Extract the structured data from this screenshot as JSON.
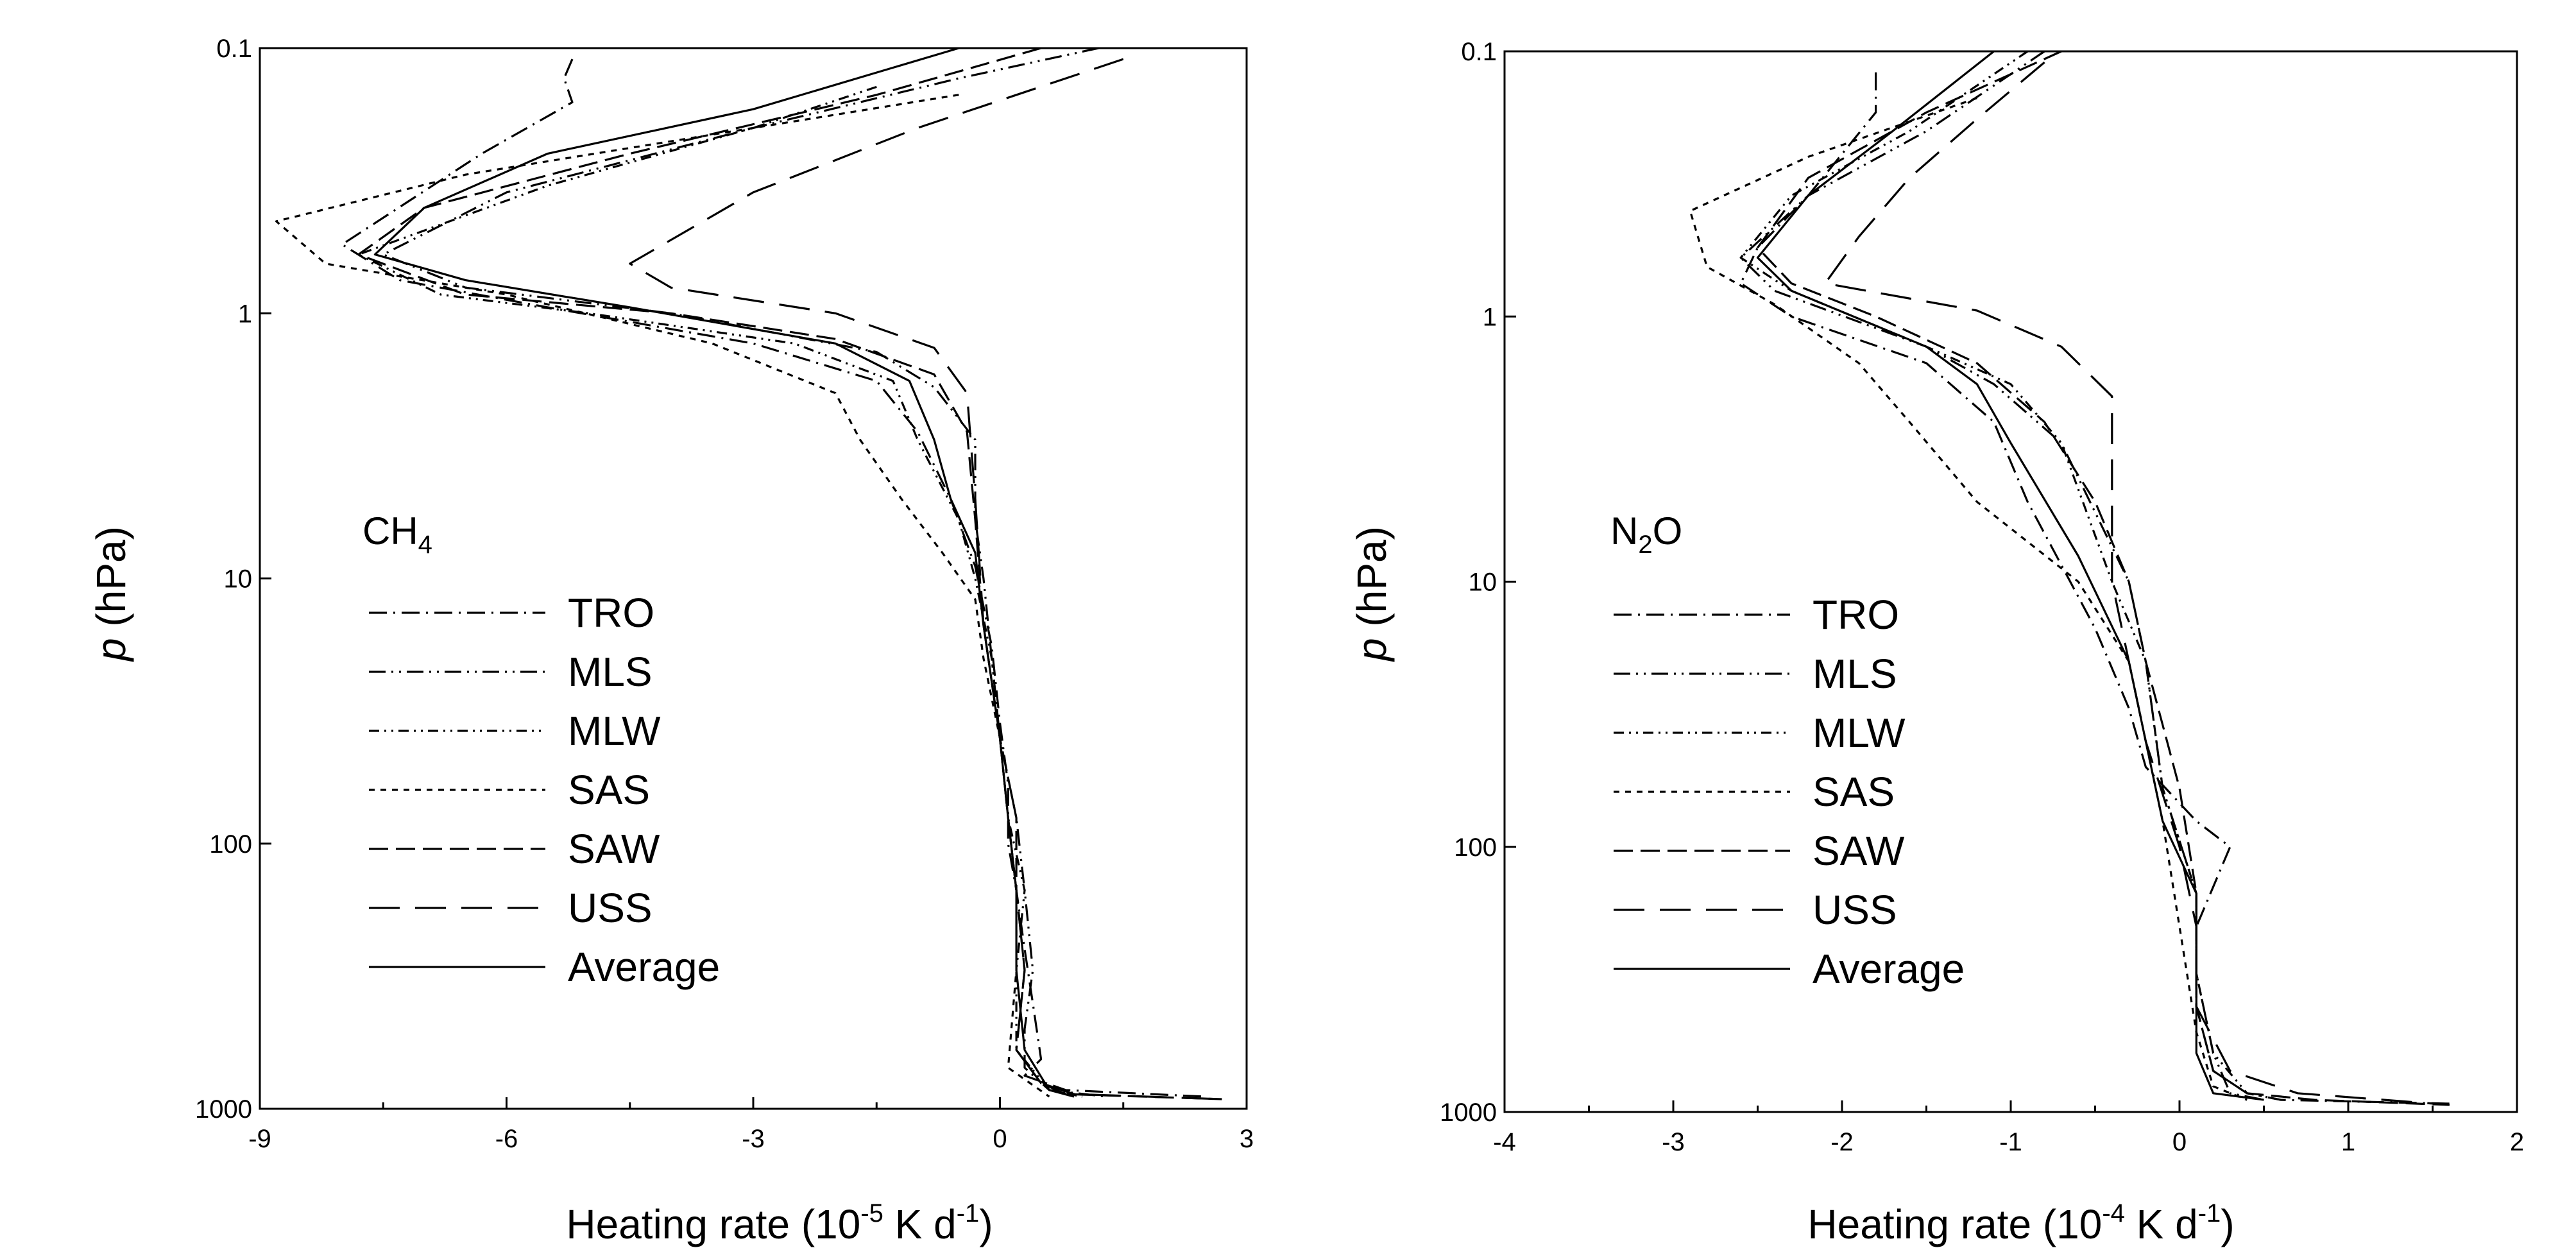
{
  "chart_data": [
    {
      "type": "line",
      "label_base": "CH",
      "label_sub": "4",
      "label_tail": "",
      "xlabel_pre": "Heating rate (10",
      "xlabel_exp": "-5",
      "xlabel_mid": " K d",
      "xlabel_exp2": "-1",
      "xlabel_post": ")",
      "ylabel_italic": "p",
      "ylabel_rest": " (hPa)",
      "xlim": [
        -9,
        3
      ],
      "xticks": [
        -9,
        -6,
        -3,
        0,
        3
      ],
      "xtick_labels": [
        "-9",
        "-6",
        "-3",
        "0",
        "3"
      ],
      "ylim": [
        0.1,
        1000
      ],
      "yscale": "log",
      "yreversed": true,
      "yticks": [
        0.1,
        1,
        10,
        100,
        1000
      ],
      "ytick_labels": [
        "0.1",
        "1",
        "10",
        "100",
        "1000"
      ],
      "legend_placement": "left-middle",
      "series": [
        {
          "name": "TRO",
          "dash": "dashdot",
          "x": [
            -5.2,
            -5.3,
            -5.2,
            -6.3,
            -8.0,
            -7.3,
            -5.5,
            -3.0,
            -1.5,
            -1.0,
            -0.6,
            -0.3,
            -0.1,
            0.0,
            0.1,
            0.1,
            0.2,
            0.3,
            0.4,
            0.5,
            0.3,
            0.8,
            2.5
          ],
          "y": [
            0.11,
            0.13,
            0.16,
            0.25,
            0.55,
            0.75,
            0.95,
            1.3,
            1.8,
            2.8,
            5.0,
            9.0,
            18.0,
            35.0,
            60.0,
            100.0,
            150.0,
            250.0,
            400.0,
            650.0,
            750.0,
            850.0,
            900.0
          ]
        },
        {
          "name": "MLS",
          "dash": "dashdotdot",
          "x": [
            1.2,
            -0.5,
            -3.0,
            -6.0,
            -7.5,
            -6.5,
            -4.0,
            -1.5,
            -0.8,
            -0.3,
            -0.3,
            -0.2,
            -0.1,
            0.0,
            0.2,
            0.3,
            0.4,
            0.3,
            0.3,
            0.6,
            1.3
          ],
          "y": [
            0.1,
            0.13,
            0.2,
            0.35,
            0.6,
            0.8,
            1.0,
            1.4,
            1.9,
            3.0,
            6.0,
            10.0,
            20.0,
            40.0,
            80.0,
            150.0,
            300.0,
            500.0,
            700.0,
            850.0,
            900.0
          ]
        },
        {
          "name": "MLW",
          "dash": "dashdotdot2",
          "x": [
            -1.5,
            -3.0,
            -5.5,
            -7.8,
            -6.8,
            -5.0,
            -2.5,
            -1.3,
            -1.0,
            -0.5,
            -0.3,
            -0.1,
            0.0,
            0.1,
            0.3,
            0.2,
            0.2,
            0.6,
            1.0
          ],
          "y": [
            0.14,
            0.2,
            0.33,
            0.6,
            0.85,
            1.0,
            1.3,
            1.8,
            3.0,
            6.0,
            10.0,
            20.0,
            40.0,
            80.0,
            150.0,
            300.0,
            600.0,
            850.0,
            900.0
          ]
        },
        {
          "name": "SAS",
          "dash": "shortdash",
          "x": [
            -0.5,
            -3.0,
            -6.5,
            -8.8,
            -8.2,
            -6.0,
            -3.5,
            -2.0,
            -1.7,
            -1.2,
            -0.7,
            -0.3,
            -0.2,
            0.0,
            0.1,
            0.2,
            0.2,
            0.1,
            0.6
          ],
          "y": [
            0.15,
            0.2,
            0.3,
            0.45,
            0.65,
            0.85,
            1.3,
            2.0,
            3.0,
            5.0,
            8.0,
            12.0,
            20.0,
            40.0,
            80.0,
            150.0,
            300.0,
            700.0,
            900.0
          ]
        },
        {
          "name": "SAW",
          "dash": "longdash",
          "x": [
            0.5,
            -1.5,
            -4.5,
            -7.0,
            -7.8,
            -6.5,
            -4.0,
            -2.0,
            -0.8,
            -0.4,
            -0.3,
            -0.2,
            0.0,
            0.2,
            0.2,
            0.3,
            0.2,
            0.5,
            0.8,
            2.7
          ],
          "y": [
            0.1,
            0.15,
            0.25,
            0.4,
            0.6,
            0.85,
            1.0,
            1.25,
            1.7,
            2.8,
            6.0,
            15.0,
            40.0,
            80.0,
            150.0,
            300.0,
            600.0,
            800.0,
            880.0,
            920.0
          ]
        },
        {
          "name": "USS",
          "dash": "verylongdash",
          "x": [
            1.5,
            -1.0,
            -3.0,
            -4.5,
            -4.0,
            -2.0,
            -0.8,
            -0.4,
            -0.3,
            -0.2,
            0.0,
            0.1,
            0.2,
            0.3,
            0.2,
            0.5,
            0.9,
            2.7
          ],
          "y": [
            0.11,
            0.2,
            0.35,
            0.65,
            0.8,
            1.0,
            1.35,
            2.0,
            5.0,
            15.0,
            40.0,
            80.0,
            150.0,
            300.0,
            600.0,
            800.0,
            880.0,
            920.0
          ]
        },
        {
          "name": "Average",
          "dash": "solid",
          "x": [
            -0.5,
            -3.0,
            -5.5,
            -7.0,
            -7.6,
            -6.5,
            -4.5,
            -2.0,
            -1.1,
            -0.8,
            -0.6,
            -0.3,
            -0.2,
            0.0,
            0.1,
            0.2,
            0.2,
            0.3,
            0.6,
            0.9
          ],
          "y": [
            0.1,
            0.17,
            0.25,
            0.4,
            0.6,
            0.75,
            0.95,
            1.3,
            1.8,
            3.0,
            5.0,
            8.0,
            15.0,
            40.0,
            80.0,
            150.0,
            300.0,
            600.0,
            850.0,
            900.0
          ]
        }
      ]
    },
    {
      "type": "line",
      "label_base": "N",
      "label_sub": "2",
      "label_tail": "O",
      "xlabel_pre": "Heating rate (10",
      "xlabel_exp": "-4",
      "xlabel_mid": " K d",
      "xlabel_exp2": "-1",
      "xlabel_post": ")",
      "ylabel_italic": "p",
      "ylabel_rest": " (hPa)",
      "xlim": [
        -4,
        2
      ],
      "xticks": [
        -4,
        -3,
        -2,
        -1,
        0,
        1,
        2
      ],
      "xtick_labels": [
        "-4",
        "-3",
        "-2",
        "-1",
        "0",
        "1",
        "2"
      ],
      "ylim": [
        0.1,
        1000
      ],
      "yscale": "log",
      "yreversed": true,
      "yticks": [
        0.1,
        1,
        10,
        100,
        1000
      ],
      "ytick_labels": [
        "0.1",
        "1",
        "10",
        "100",
        "1000"
      ],
      "legend_placement": "left-middle",
      "series": [
        {
          "name": "TRO",
          "dash": "dashdot",
          "x": [
            -1.8,
            -1.8,
            -2.2,
            -2.5,
            -2.6,
            -2.3,
            -1.5,
            -1.1,
            -0.9,
            -0.5,
            -0.3,
            -0.2,
            0.1,
            0.3,
            0.1,
            0.1,
            0.2,
            0.4,
            0.6,
            1.6
          ],
          "y": [
            0.12,
            0.17,
            0.35,
            0.55,
            0.75,
            1.0,
            1.5,
            2.5,
            5.0,
            15.0,
            30.0,
            50.0,
            80.0,
            100.0,
            200.0,
            400.0,
            700.0,
            850.0,
            900.0,
            930.0
          ]
        },
        {
          "name": "MLS",
          "dash": "dashdotdot",
          "x": [
            -0.8,
            -1.5,
            -2.2,
            -2.6,
            -2.4,
            -1.5,
            -1.1,
            -0.7,
            -0.3,
            -0.2,
            -0.1,
            0.1,
            0.1,
            0.2,
            0.3,
            0.5
          ],
          "y": [
            0.1,
            0.2,
            0.35,
            0.6,
            0.8,
            1.3,
            1.8,
            3.0,
            10.0,
            20.0,
            60.0,
            150.0,
            300.0,
            600.0,
            850.0,
            900.0
          ]
        },
        {
          "name": "MLW",
          "dash": "dashdotdot2",
          "x": [
            -0.9,
            -1.6,
            -2.3,
            -2.6,
            -2.3,
            -1.5,
            -1.0,
            -0.7,
            -0.4,
            -0.2,
            -0.1,
            0.1,
            0.1,
            0.2,
            0.4,
            0.6
          ],
          "y": [
            0.1,
            0.2,
            0.35,
            0.6,
            0.8,
            1.3,
            1.8,
            3.0,
            10.0,
            20.0,
            60.0,
            150.0,
            300.0,
            600.0,
            850.0,
            900.0
          ]
        },
        {
          "name": "SAS",
          "dash": "shortdash",
          "x": [
            -1.2,
            -2.2,
            -2.9,
            -2.8,
            -2.4,
            -1.9,
            -1.6,
            -1.2,
            -0.6,
            -0.3,
            -0.2,
            -0.1,
            0.0,
            0.1,
            0.2,
            0.4
          ],
          "y": [
            0.15,
            0.25,
            0.4,
            0.65,
            0.9,
            1.5,
            2.5,
            5.0,
            10.0,
            20.0,
            40.0,
            80.0,
            200.0,
            500.0,
            800.0,
            900.0
          ]
        },
        {
          "name": "SAW",
          "dash": "longdash",
          "x": [
            -0.7,
            -1.5,
            -2.2,
            -2.5,
            -2.3,
            -1.8,
            -1.2,
            -0.8,
            -0.5,
            -0.3,
            -0.2,
            0.0,
            0.1,
            0.1,
            0.2,
            0.4,
            0.8,
            1.6
          ],
          "y": [
            0.1,
            0.17,
            0.3,
            0.55,
            0.75,
            1.0,
            1.5,
            2.5,
            5.0,
            10.0,
            20.0,
            60.0,
            150.0,
            400.0,
            700.0,
            850.0,
            900.0,
            940.0
          ]
        },
        {
          "name": "USS",
          "dash": "verylongdash",
          "x": [
            -0.8,
            -1.2,
            -1.6,
            -1.9,
            -2.1,
            -1.2,
            -0.7,
            -0.4,
            -0.4,
            -0.2,
            0.0,
            0.1,
            0.1,
            0.3,
            0.7,
            1.6
          ],
          "y": [
            0.11,
            0.18,
            0.3,
            0.5,
            0.75,
            0.95,
            1.3,
            2.0,
            10.0,
            40.0,
            100.0,
            200.0,
            400.0,
            700.0,
            850.0,
            940.0
          ]
        },
        {
          "name": "Average",
          "dash": "solid",
          "x": [
            -1.1,
            -1.7,
            -2.2,
            -2.5,
            -2.3,
            -1.5,
            -1.2,
            -1.0,
            -0.6,
            -0.3,
            -0.2,
            -0.1,
            0.1,
            0.1,
            0.1,
            0.2,
            0.5
          ],
          "y": [
            0.1,
            0.2,
            0.35,
            0.6,
            0.8,
            1.3,
            1.8,
            3.0,
            8.0,
            20.0,
            40.0,
            80.0,
            150.0,
            300.0,
            600.0,
            850.0,
            900.0
          ]
        }
      ]
    }
  ]
}
